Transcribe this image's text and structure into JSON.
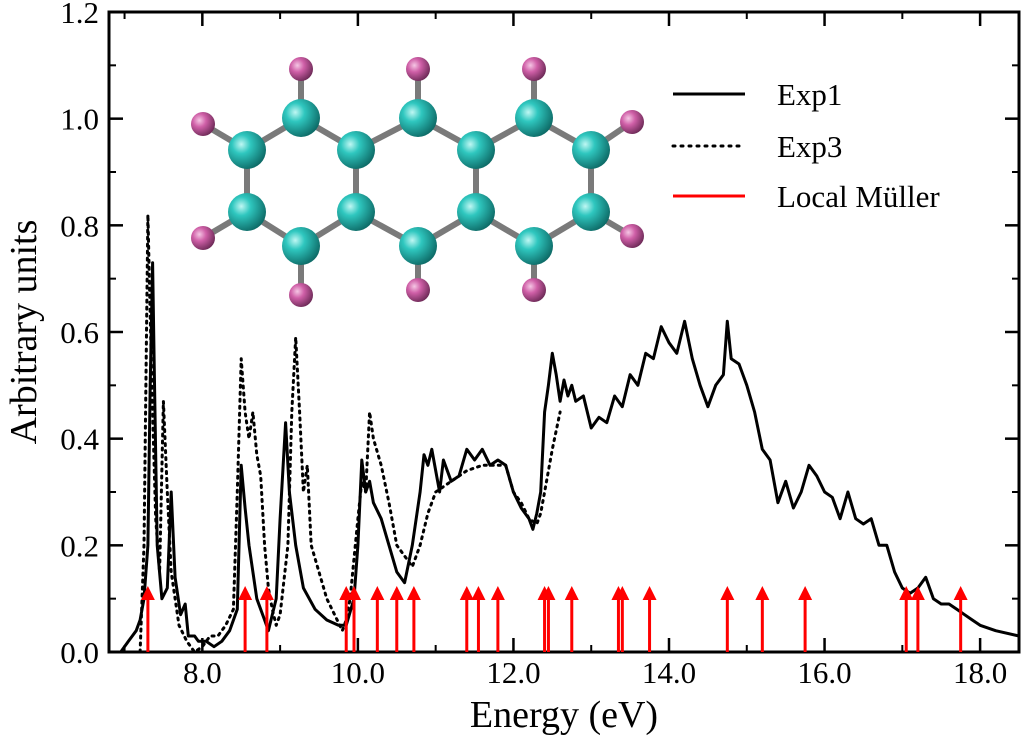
{
  "chart_data": {
    "type": "line",
    "xlabel": "Energy (eV)",
    "ylabel": "Arbitrary units",
    "xlim": [
      6.8,
      18.5
    ],
    "ylim": [
      0.0,
      1.2
    ],
    "x_ticks": [
      8.0,
      10.0,
      12.0,
      14.0,
      16.0,
      18.0
    ],
    "x_tick_labels": [
      "8.0",
      "10.0",
      "12.0",
      "14.0",
      "16.0",
      "18.0"
    ],
    "y_ticks": [
      0.0,
      0.2,
      0.4,
      0.6,
      0.8,
      1.0,
      1.2
    ],
    "y_tick_labels": [
      "0.0",
      "0.2",
      "0.4",
      "0.6",
      "0.8",
      "1.0",
      "1.2"
    ],
    "legend_position": "top-right",
    "grid": false,
    "series": [
      {
        "name": "Exp1",
        "style": "solid",
        "color": "#000000",
        "points": [
          [
            6.95,
            0.0
          ],
          [
            7.05,
            0.02
          ],
          [
            7.15,
            0.04
          ],
          [
            7.2,
            0.06
          ],
          [
            7.25,
            0.1
          ],
          [
            7.3,
            0.2
          ],
          [
            7.33,
            0.5
          ],
          [
            7.36,
            0.73
          ],
          [
            7.38,
            0.55
          ],
          [
            7.42,
            0.2
          ],
          [
            7.48,
            0.1
          ],
          [
            7.55,
            0.12
          ],
          [
            7.6,
            0.3
          ],
          [
            7.65,
            0.14
          ],
          [
            7.72,
            0.07
          ],
          [
            7.78,
            0.09
          ],
          [
            7.82,
            0.03
          ],
          [
            7.9,
            0.03
          ],
          [
            7.95,
            0.02
          ],
          [
            8.05,
            0.02
          ],
          [
            8.15,
            0.01
          ],
          [
            8.25,
            0.02
          ],
          [
            8.35,
            0.04
          ],
          [
            8.45,
            0.08
          ],
          [
            8.5,
            0.35
          ],
          [
            8.55,
            0.27
          ],
          [
            8.6,
            0.2
          ],
          [
            8.7,
            0.1
          ],
          [
            8.8,
            0.06
          ],
          [
            8.85,
            0.04
          ],
          [
            8.95,
            0.1
          ],
          [
            9.0,
            0.25
          ],
          [
            9.07,
            0.43
          ],
          [
            9.12,
            0.3
          ],
          [
            9.2,
            0.2
          ],
          [
            9.3,
            0.12
          ],
          [
            9.45,
            0.08
          ],
          [
            9.6,
            0.06
          ],
          [
            9.75,
            0.05
          ],
          [
            9.85,
            0.05
          ],
          [
            9.95,
            0.1
          ],
          [
            10.0,
            0.2
          ],
          [
            10.05,
            0.36
          ],
          [
            10.1,
            0.3
          ],
          [
            10.15,
            0.32
          ],
          [
            10.2,
            0.28
          ],
          [
            10.3,
            0.25
          ],
          [
            10.4,
            0.2
          ],
          [
            10.5,
            0.15
          ],
          [
            10.6,
            0.13
          ],
          [
            10.7,
            0.2
          ],
          [
            10.8,
            0.3
          ],
          [
            10.85,
            0.37
          ],
          [
            10.9,
            0.35
          ],
          [
            10.95,
            0.38
          ],
          [
            11.0,
            0.34
          ],
          [
            11.05,
            0.3
          ],
          [
            11.1,
            0.36
          ],
          [
            11.15,
            0.34
          ],
          [
            11.2,
            0.32
          ],
          [
            11.3,
            0.33
          ],
          [
            11.4,
            0.38
          ],
          [
            11.5,
            0.36
          ],
          [
            11.6,
            0.38
          ],
          [
            11.7,
            0.35
          ],
          [
            11.8,
            0.36
          ],
          [
            11.9,
            0.35
          ],
          [
            12.0,
            0.3
          ],
          [
            12.1,
            0.27
          ],
          [
            12.2,
            0.25
          ],
          [
            12.25,
            0.23
          ],
          [
            12.3,
            0.26
          ],
          [
            12.35,
            0.3
          ],
          [
            12.4,
            0.45
          ],
          [
            12.45,
            0.5
          ],
          [
            12.5,
            0.56
          ],
          [
            12.55,
            0.52
          ],
          [
            12.6,
            0.47
          ],
          [
            12.65,
            0.51
          ],
          [
            12.7,
            0.48
          ],
          [
            12.75,
            0.5
          ],
          [
            12.8,
            0.47
          ],
          [
            12.9,
            0.48
          ],
          [
            13.0,
            0.42
          ],
          [
            13.1,
            0.44
          ],
          [
            13.2,
            0.43
          ],
          [
            13.3,
            0.48
          ],
          [
            13.4,
            0.46
          ],
          [
            13.5,
            0.52
          ],
          [
            13.6,
            0.5
          ],
          [
            13.7,
            0.56
          ],
          [
            13.8,
            0.55
          ],
          [
            13.9,
            0.61
          ],
          [
            14.0,
            0.58
          ],
          [
            14.1,
            0.56
          ],
          [
            14.2,
            0.62
          ],
          [
            14.3,
            0.55
          ],
          [
            14.4,
            0.5
          ],
          [
            14.5,
            0.46
          ],
          [
            14.6,
            0.5
          ],
          [
            14.7,
            0.52
          ],
          [
            14.75,
            0.62
          ],
          [
            14.8,
            0.55
          ],
          [
            14.9,
            0.54
          ],
          [
            15.0,
            0.5
          ],
          [
            15.1,
            0.45
          ],
          [
            15.2,
            0.38
          ],
          [
            15.3,
            0.36
          ],
          [
            15.4,
            0.28
          ],
          [
            15.5,
            0.32
          ],
          [
            15.6,
            0.27
          ],
          [
            15.7,
            0.3
          ],
          [
            15.8,
            0.35
          ],
          [
            15.9,
            0.33
          ],
          [
            16.0,
            0.3
          ],
          [
            16.1,
            0.29
          ],
          [
            16.2,
            0.25
          ],
          [
            16.3,
            0.3
          ],
          [
            16.4,
            0.25
          ],
          [
            16.5,
            0.24
          ],
          [
            16.6,
            0.25
          ],
          [
            16.7,
            0.2
          ],
          [
            16.8,
            0.2
          ],
          [
            16.9,
            0.15
          ],
          [
            17.0,
            0.12
          ],
          [
            17.1,
            0.11
          ],
          [
            17.2,
            0.12
          ],
          [
            17.3,
            0.14
          ],
          [
            17.4,
            0.1
          ],
          [
            17.5,
            0.09
          ],
          [
            17.6,
            0.09
          ],
          [
            17.7,
            0.08
          ],
          [
            17.8,
            0.07
          ],
          [
            17.9,
            0.06
          ],
          [
            18.0,
            0.05
          ],
          [
            18.2,
            0.04
          ],
          [
            18.5,
            0.03
          ]
        ]
      },
      {
        "name": "Exp3",
        "style": "dotted",
        "color": "#000000",
        "points": [
          [
            7.2,
            0.0
          ],
          [
            7.25,
            0.2
          ],
          [
            7.3,
            0.82
          ],
          [
            7.35,
            0.5
          ],
          [
            7.4,
            0.25
          ],
          [
            7.45,
            0.15
          ],
          [
            7.5,
            0.47
          ],
          [
            7.55,
            0.3
          ],
          [
            7.6,
            0.15
          ],
          [
            7.7,
            0.05
          ],
          [
            7.8,
            0.02
          ],
          [
            7.9,
            0.0
          ],
          [
            8.0,
            0.01
          ],
          [
            8.1,
            0.03
          ],
          [
            8.2,
            0.03
          ],
          [
            8.3,
            0.05
          ],
          [
            8.4,
            0.08
          ],
          [
            8.45,
            0.3
          ],
          [
            8.5,
            0.55
          ],
          [
            8.55,
            0.45
          ],
          [
            8.6,
            0.4
          ],
          [
            8.65,
            0.45
          ],
          [
            8.7,
            0.37
          ],
          [
            8.75,
            0.33
          ],
          [
            8.8,
            0.2
          ],
          [
            8.85,
            0.12
          ],
          [
            8.9,
            0.08
          ],
          [
            8.95,
            0.05
          ],
          [
            9.0,
            0.07
          ],
          [
            9.1,
            0.2
          ],
          [
            9.15,
            0.45
          ],
          [
            9.2,
            0.59
          ],
          [
            9.25,
            0.45
          ],
          [
            9.3,
            0.3
          ],
          [
            9.35,
            0.35
          ],
          [
            9.4,
            0.2
          ],
          [
            9.5,
            0.15
          ],
          [
            9.6,
            0.1
          ],
          [
            9.7,
            0.07
          ],
          [
            9.8,
            0.04
          ],
          [
            9.85,
            0.06
          ],
          [
            9.9,
            0.1
          ],
          [
            10.0,
            0.25
          ],
          [
            10.05,
            0.32
          ],
          [
            10.1,
            0.3
          ],
          [
            10.15,
            0.45
          ],
          [
            10.2,
            0.4
          ],
          [
            10.3,
            0.35
          ],
          [
            10.4,
            0.28
          ],
          [
            10.5,
            0.2
          ],
          [
            10.6,
            0.18
          ],
          [
            10.7,
            0.16
          ],
          [
            10.8,
            0.2
          ],
          [
            10.9,
            0.26
          ],
          [
            11.0,
            0.3
          ],
          [
            11.2,
            0.32
          ],
          [
            11.4,
            0.34
          ],
          [
            11.6,
            0.35
          ],
          [
            11.8,
            0.35
          ],
          [
            11.9,
            0.35
          ],
          [
            12.0,
            0.3
          ],
          [
            12.1,
            0.28
          ],
          [
            12.2,
            0.25
          ],
          [
            12.3,
            0.24
          ],
          [
            12.35,
            0.26
          ],
          [
            12.4,
            0.3
          ],
          [
            12.5,
            0.38
          ],
          [
            12.6,
            0.45
          ]
        ]
      }
    ],
    "markers": {
      "name": "Local Müller",
      "color": "#ff0000",
      "marker_height": 0.12,
      "x": [
        7.3,
        8.55,
        8.83,
        9.85,
        9.95,
        10.25,
        10.5,
        10.72,
        11.4,
        11.55,
        11.8,
        12.4,
        12.45,
        12.75,
        13.35,
        13.4,
        13.75,
        14.75,
        15.2,
        15.75,
        17.05,
        17.2,
        17.75
      ]
    }
  },
  "inset": {
    "atom_colors": {
      "carbon": "#2fc7bf",
      "hydrogen": "#cf5fa7",
      "bond": "#7a7a7a"
    }
  }
}
